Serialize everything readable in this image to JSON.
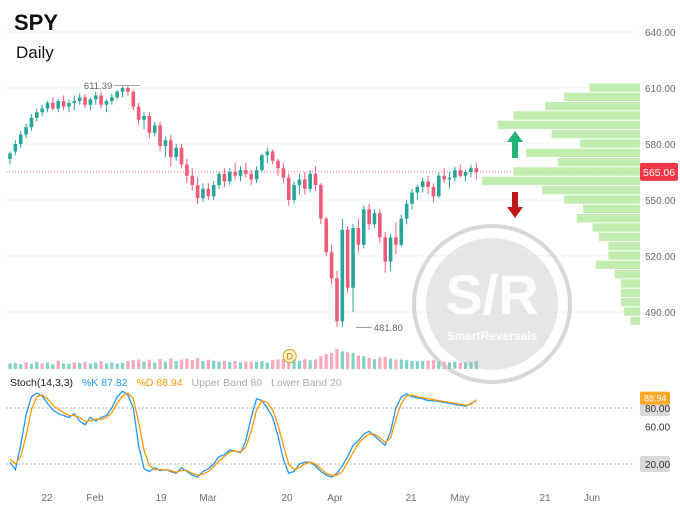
{
  "header": {
    "ticker": "SPY",
    "timeframe": "Daily"
  },
  "colors": {
    "up": "#26a69a",
    "down": "#ef5a79",
    "vol_up": "#7fd3c5",
    "vol_down": "#f7a9bb",
    "k_line": "#2196f3",
    "d_line": "#ff9800",
    "profile": "#b7e9a2",
    "arrow_up": "#22b573",
    "arrow_down": "#c0171d",
    "price_tag": "#f23645",
    "watermark": "#b8b8b8"
  },
  "chart_data": [
    {
      "type": "candlestick",
      "title": "SPY",
      "subtitle": "Daily",
      "ylim": [
        470,
        650
      ],
      "y_ticks": [
        "640.00",
        "610.00",
        "580.00",
        "550.00",
        "520.00",
        "490.00"
      ],
      "y_tick_values": [
        640,
        610,
        580,
        550,
        520,
        490
      ],
      "x_tick_labels": [
        "22",
        "Feb",
        "19",
        "Mar",
        "20",
        "Apr",
        "21",
        "May",
        "21",
        "Jun"
      ],
      "last_price": "565.06",
      "annotations": [
        {
          "label": "611.39",
          "bar": 22,
          "value": 611.39
        },
        {
          "label": "481.80",
          "bar": 66,
          "value": 481.8
        }
      ],
      "candles": [
        [
          572,
          576,
          569,
          575
        ],
        [
          576,
          582,
          574,
          580
        ],
        [
          580,
          587,
          578,
          585
        ],
        [
          585,
          591,
          583,
          589
        ],
        [
          589,
          596,
          587,
          594
        ],
        [
          594,
          599,
          592,
          597
        ],
        [
          597,
          601,
          595,
          599
        ],
        [
          599,
          603,
          597,
          602
        ],
        [
          602,
          605,
          598,
          599
        ],
        [
          599,
          604,
          597,
          603
        ],
        [
          603,
          606,
          598,
          600
        ],
        [
          600,
          604,
          597,
          602
        ],
        [
          602,
          606,
          598,
          603
        ],
        [
          603,
          607,
          601,
          605
        ],
        [
          605,
          607,
          599,
          601
        ],
        [
          601,
          605,
          598,
          604
        ],
        [
          604,
          608,
          601,
          606
        ],
        [
          606,
          608,
          599,
          601
        ],
        [
          601,
          604,
          597,
          603
        ],
        [
          603,
          607,
          601,
          605
        ],
        [
          605,
          609,
          604,
          608
        ],
        [
          608,
          611,
          605,
          610
        ],
        [
          610,
          611.39,
          606,
          608
        ],
        [
          608,
          609,
          598,
          600
        ],
        [
          600,
          602,
          590,
          593
        ],
        [
          593,
          597,
          588,
          595
        ],
        [
          595,
          597,
          583,
          586
        ],
        [
          586,
          592,
          584,
          590
        ],
        [
          590,
          592,
          576,
          579
        ],
        [
          579,
          584,
          573,
          582
        ],
        [
          582,
          585,
          568,
          573
        ],
        [
          573,
          580,
          571,
          578
        ],
        [
          578,
          580,
          567,
          569
        ],
        [
          569,
          572,
          559,
          563
        ],
        [
          563,
          567,
          555,
          558
        ],
        [
          558,
          562,
          548,
          551
        ],
        [
          551,
          559,
          549,
          556
        ],
        [
          556,
          559,
          550,
          552
        ],
        [
          552,
          560,
          550,
          558
        ],
        [
          558,
          565,
          556,
          564
        ],
        [
          564,
          567,
          557,
          560
        ],
        [
          560,
          567,
          558,
          565
        ],
        [
          565,
          570,
          561,
          563
        ],
        [
          563,
          568,
          560,
          566
        ],
        [
          566,
          570,
          562,
          564
        ],
        [
          564,
          566,
          558,
          561
        ],
        [
          561,
          568,
          559,
          566
        ],
        [
          566,
          575,
          565,
          574
        ],
        [
          574,
          578,
          570,
          576
        ],
        [
          576,
          577,
          569,
          571
        ],
        [
          571,
          572,
          563,
          567
        ],
        [
          567,
          570,
          559,
          562
        ],
        [
          562,
          564,
          547,
          550
        ],
        [
          550,
          560,
          548,
          558
        ],
        [
          558,
          564,
          553,
          561
        ],
        [
          561,
          565,
          553,
          556
        ],
        [
          556,
          566,
          554,
          564
        ],
        [
          564,
          568,
          555,
          558
        ],
        [
          558,
          559,
          537,
          540
        ],
        [
          540,
          541,
          520,
          522
        ],
        [
          522,
          526,
          505,
          508
        ],
        [
          508,
          512,
          482,
          485
        ],
        [
          485,
          540,
          481.8,
          534
        ],
        [
          534,
          536,
          500,
          503
        ],
        [
          503,
          537,
          490,
          535
        ],
        [
          535,
          540,
          522,
          526
        ],
        [
          526,
          547,
          524,
          545
        ],
        [
          545,
          548,
          534,
          537
        ],
        [
          537,
          545,
          535,
          543
        ],
        [
          543,
          545,
          527,
          530
        ],
        [
          530,
          533,
          511,
          517
        ],
        [
          517,
          532,
          512,
          530
        ],
        [
          530,
          538,
          521,
          526
        ],
        [
          526,
          542,
          525,
          540
        ],
        [
          540,
          550,
          537,
          548
        ],
        [
          548,
          556,
          545,
          554
        ],
        [
          554,
          558,
          550,
          557
        ],
        [
          557,
          562,
          554,
          560
        ],
        [
          560,
          563,
          553,
          557
        ],
        [
          557,
          559,
          549,
          552
        ],
        [
          552,
          565,
          551,
          563
        ],
        [
          563,
          567,
          559,
          561
        ],
        [
          561,
          565,
          556,
          562
        ],
        [
          562,
          568,
          560,
          566
        ],
        [
          566,
          569,
          562,
          563
        ],
        [
          563,
          566,
          560,
          565
        ],
        [
          565,
          569,
          562,
          567
        ],
        [
          567,
          570,
          561,
          565.06
        ]
      ],
      "volume": [
        [
          0.35,
          "up"
        ],
        [
          0.38,
          "up"
        ],
        [
          0.3,
          "up"
        ],
        [
          0.42,
          "down"
        ],
        [
          0.33,
          "up"
        ],
        [
          0.45,
          "up"
        ],
        [
          0.36,
          "down"
        ],
        [
          0.4,
          "up"
        ],
        [
          0.3,
          "up"
        ],
        [
          0.52,
          "down"
        ],
        [
          0.35,
          "up"
        ],
        [
          0.33,
          "up"
        ],
        [
          0.4,
          "down"
        ],
        [
          0.37,
          "up"
        ],
        [
          0.45,
          "down"
        ],
        [
          0.34,
          "up"
        ],
        [
          0.41,
          "up"
        ],
        [
          0.48,
          "down"
        ],
        [
          0.36,
          "up"
        ],
        [
          0.4,
          "up"
        ],
        [
          0.33,
          "up"
        ],
        [
          0.39,
          "up"
        ],
        [
          0.5,
          "down"
        ],
        [
          0.55,
          "down"
        ],
        [
          0.6,
          "down"
        ],
        [
          0.44,
          "up"
        ],
        [
          0.58,
          "down"
        ],
        [
          0.4,
          "up"
        ],
        [
          0.62,
          "down"
        ],
        [
          0.45,
          "up"
        ],
        [
          0.66,
          "down"
        ],
        [
          0.5,
          "up"
        ],
        [
          0.6,
          "down"
        ],
        [
          0.64,
          "down"
        ],
        [
          0.55,
          "down"
        ],
        [
          0.68,
          "down"
        ],
        [
          0.5,
          "up"
        ],
        [
          0.58,
          "down"
        ],
        [
          0.52,
          "up"
        ],
        [
          0.47,
          "up"
        ],
        [
          0.5,
          "down"
        ],
        [
          0.45,
          "up"
        ],
        [
          0.5,
          "down"
        ],
        [
          0.42,
          "up"
        ],
        [
          0.46,
          "down"
        ],
        [
          0.48,
          "down"
        ],
        [
          0.44,
          "up"
        ],
        [
          0.5,
          "up"
        ],
        [
          0.4,
          "up"
        ],
        [
          0.55,
          "down"
        ],
        [
          0.6,
          "down"
        ],
        [
          0.62,
          "down"
        ],
        [
          0.72,
          "down"
        ],
        [
          0.6,
          "up"
        ],
        [
          0.52,
          "up"
        ],
        [
          0.62,
          "down"
        ],
        [
          0.55,
          "up"
        ],
        [
          0.6,
          "down"
        ],
        [
          0.8,
          "down"
        ],
        [
          0.95,
          "down"
        ],
        [
          1.0,
          "down"
        ],
        [
          1.25,
          "down"
        ],
        [
          1.1,
          "up"
        ],
        [
          1.05,
          "down"
        ],
        [
          1.0,
          "up"
        ],
        [
          0.85,
          "down"
        ],
        [
          0.8,
          "up"
        ],
        [
          0.7,
          "down"
        ],
        [
          0.6,
          "up"
        ],
        [
          0.72,
          "down"
        ],
        [
          0.75,
          "down"
        ],
        [
          0.65,
          "up"
        ],
        [
          0.6,
          "down"
        ],
        [
          0.6,
          "up"
        ],
        [
          0.55,
          "up"
        ],
        [
          0.5,
          "up"
        ],
        [
          0.48,
          "up"
        ],
        [
          0.5,
          "up"
        ],
        [
          0.52,
          "down"
        ],
        [
          0.55,
          "down"
        ],
        [
          0.5,
          "up"
        ],
        [
          0.44,
          "down"
        ],
        [
          0.42,
          "up"
        ],
        [
          0.45,
          "up"
        ],
        [
          0.4,
          "down"
        ],
        [
          0.42,
          "up"
        ],
        [
          0.45,
          "up"
        ],
        [
          0.5,
          "up"
        ]
      ],
      "volume_profile": [
        {
          "price": 610,
          "width": 0.32
        },
        {
          "price": 605,
          "width": 0.48
        },
        {
          "price": 600,
          "width": 0.6
        },
        {
          "price": 595,
          "width": 0.8
        },
        {
          "price": 590,
          "width": 0.9
        },
        {
          "price": 585,
          "width": 0.56
        },
        {
          "price": 580,
          "width": 0.38
        },
        {
          "price": 575,
          "width": 0.72
        },
        {
          "price": 570,
          "width": 0.52
        },
        {
          "price": 565,
          "width": 0.8
        },
        {
          "price": 560,
          "width": 1.0
        },
        {
          "price": 555,
          "width": 0.62
        },
        {
          "price": 550,
          "width": 0.48
        },
        {
          "price": 545,
          "width": 0.36
        },
        {
          "price": 540,
          "width": 0.4
        },
        {
          "price": 535,
          "width": 0.3
        },
        {
          "price": 530,
          "width": 0.26
        },
        {
          "price": 525,
          "width": 0.2
        },
        {
          "price": 520,
          "width": 0.2
        },
        {
          "price": 515,
          "width": 0.28
        },
        {
          "price": 510,
          "width": 0.16
        },
        {
          "price": 505,
          "width": 0.12
        },
        {
          "price": 500,
          "width": 0.12
        },
        {
          "price": 495,
          "width": 0.12
        },
        {
          "price": 490,
          "width": 0.1
        },
        {
          "price": 485,
          "width": 0.06
        }
      ],
      "watermark_text": "S/R",
      "watermark_subtext": "SmartReversals",
      "dividend_marker": "D"
    },
    {
      "type": "line",
      "title": "Stoch(14,3,3)",
      "ylim": [
        0,
        100
      ],
      "y_ticks": [
        "80.00",
        "60.00",
        "20.00"
      ],
      "y_tick_values": [
        80,
        60,
        20
      ],
      "last_value_tag": "88.94",
      "legend": {
        "k_label": "%K 87.82",
        "d_label": "%D 88.94",
        "upper_band": "Upper Band 80",
        "lower_band": "Lower Band 20"
      },
      "series": [
        {
          "name": "%K",
          "values": [
            22,
            14,
            40,
            73,
            92,
            96,
            93,
            85,
            78,
            74,
            72,
            70,
            74,
            66,
            62,
            70,
            66,
            70,
            72,
            80,
            92,
            98,
            94,
            80,
            40,
            15,
            12,
            16,
            13,
            14,
            12,
            10,
            16,
            12,
            8,
            6,
            12,
            15,
            20,
            28,
            30,
            35,
            34,
            32,
            45,
            70,
            90,
            88,
            80,
            70,
            50,
            25,
            10,
            12,
            20,
            22,
            22,
            18,
            12,
            8,
            6,
            10,
            18,
            28,
            40,
            45,
            52,
            55,
            50,
            45,
            40,
            55,
            80,
            92,
            95,
            92,
            91,
            90,
            88,
            88,
            87,
            86,
            85,
            84,
            83,
            82,
            85,
            87.82
          ]
        },
        {
          "name": "%D",
          "values": [
            25,
            20,
            28,
            50,
            78,
            92,
            94,
            90,
            83,
            79,
            75,
            72,
            72,
            70,
            66,
            66,
            68,
            68,
            70,
            75,
            85,
            93,
            96,
            90,
            65,
            35,
            18,
            14,
            14,
            14,
            13,
            11,
            13,
            13,
            10,
            8,
            9,
            12,
            17,
            23,
            28,
            33,
            34,
            33,
            38,
            55,
            78,
            88,
            86,
            78,
            62,
            40,
            20,
            14,
            16,
            20,
            22,
            20,
            15,
            10,
            8,
            8,
            12,
            22,
            32,
            42,
            48,
            52,
            52,
            48,
            43,
            48,
            68,
            85,
            93,
            94,
            92,
            91,
            90,
            89,
            88,
            87,
            86,
            85,
            84,
            83,
            84,
            88.94
          ]
        }
      ]
    }
  ]
}
